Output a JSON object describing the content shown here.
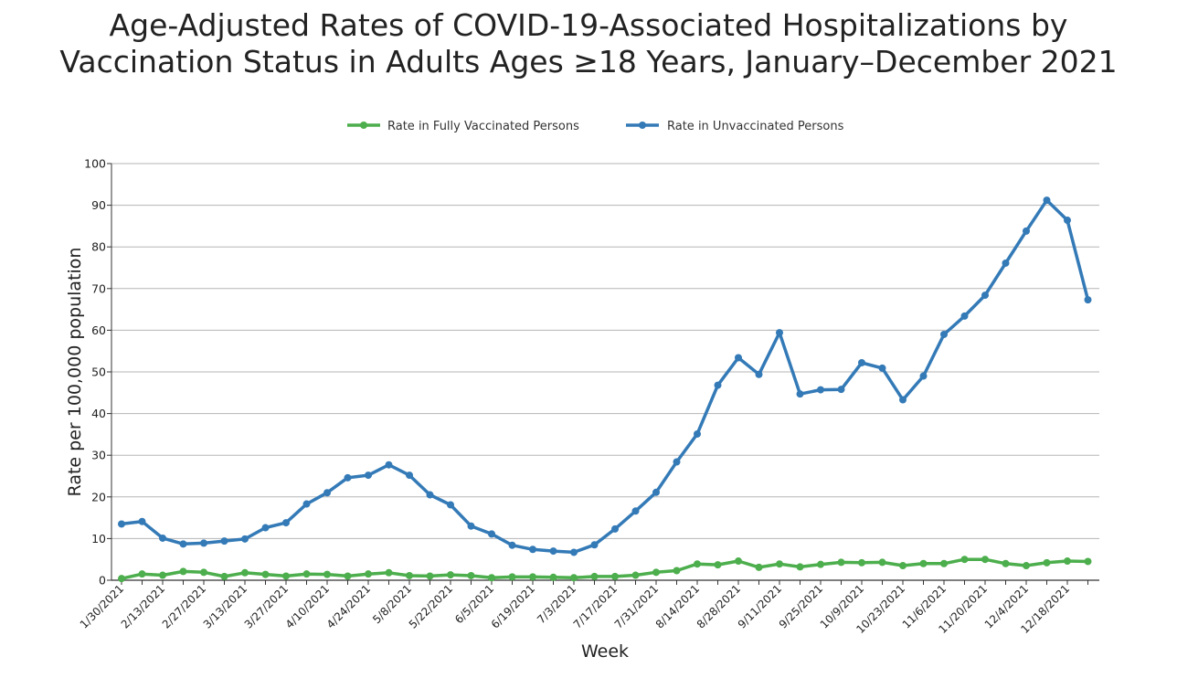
{
  "page": {
    "title_line1": "Age-Adjusted Rates of COVID-19-Associated Hospitalizations by",
    "title_line2": "Vaccination Status in Adults Ages ≥18 Years, January–December 2021"
  },
  "chart_data": {
    "type": "line",
    "title": "Age-Adjusted Rates of COVID-19-Associated Hospitalizations by Vaccination Status in Adults Ages ≥18 Years, January–December 2021",
    "xlabel": "Week",
    "ylabel": "Rate per 100,000 population",
    "ylim": [
      0,
      100
    ],
    "yticks": [
      0,
      10,
      20,
      30,
      40,
      50,
      60,
      70,
      80,
      90,
      100
    ],
    "grid": true,
    "legend_position": "top-center",
    "x_tick_labels": [
      "1/30/2021",
      "2/13/2021",
      "2/27/2021",
      "3/13/2021",
      "3/27/2021",
      "4/10/2021",
      "4/24/2021",
      "5/8/2021",
      "5/22/2021",
      "6/5/2021",
      "6/19/2021",
      "7/3/2021",
      "7/17/2021",
      "7/31/2021",
      "8/14/2021",
      "8/28/2021",
      "9/11/2021",
      "9/25/2021",
      "10/9/2021",
      "10/23/2021",
      "11/6/2021",
      "11/20/2021",
      "12/4/2021",
      "12/18/2021"
    ],
    "series": [
      {
        "name": "Rate in Fully Vaccinated Persons",
        "color": "#4cae4c",
        "values": [
          0.4,
          1.5,
          1.2,
          2.1,
          1.9,
          0.9,
          1.8,
          1.4,
          1.0,
          1.5,
          1.4,
          1.0,
          1.5,
          1.8,
          1.1,
          1.0,
          1.3,
          1.1,
          0.6,
          0.8,
          0.8,
          0.7,
          0.6,
          0.9,
          0.9,
          1.2,
          1.9,
          2.3,
          3.9,
          3.7,
          4.6,
          3.1,
          3.9,
          3.2,
          3.8,
          4.3,
          4.2,
          4.3,
          3.5,
          4.0,
          4.0,
          5.0,
          5.0,
          4.0,
          3.5,
          4.2,
          4.6,
          4.5
        ]
      },
      {
        "name": "Rate in Unvaccinated Persons",
        "color": "#337ab7",
        "values": [
          13.5,
          14.1,
          10.1,
          8.7,
          8.9,
          9.4,
          9.9,
          12.6,
          13.8,
          18.3,
          21.0,
          24.6,
          25.2,
          27.7,
          25.2,
          20.5,
          18.1,
          13.0,
          11.1,
          8.4,
          7.4,
          7.0,
          6.7,
          8.5,
          12.3,
          16.6,
          21.1,
          28.4,
          35.1,
          46.8,
          53.4,
          49.4,
          59.4,
          44.7,
          45.7,
          45.8,
          52.2,
          50.9,
          43.3,
          49.0,
          59.0,
          63.4,
          68.4,
          76.1,
          83.8,
          91.2,
          86.4,
          67.3
        ]
      }
    ]
  }
}
